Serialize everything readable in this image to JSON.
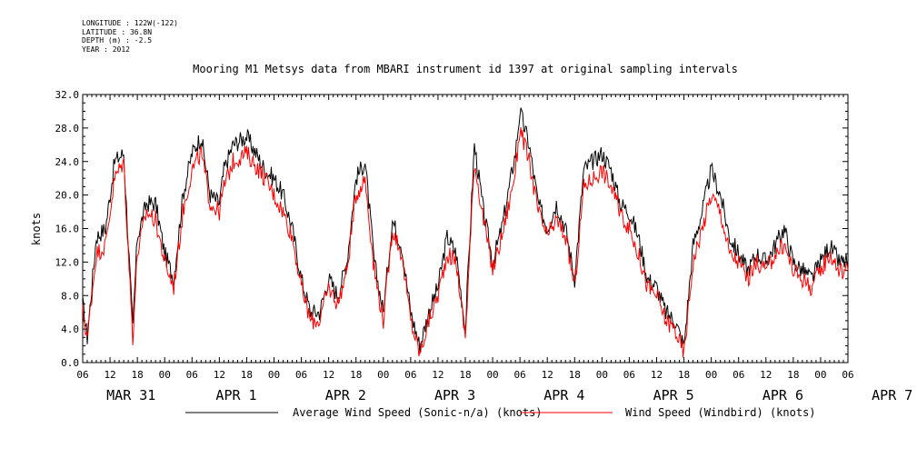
{
  "meta": {
    "longitude": "LONGITUDE : 122W(-122)",
    "latitude": "LATITUDE : 36.8N",
    "depth": "DEPTH (m) : -2.5",
    "year": "YEAR : 2012"
  },
  "chart_data": {
    "type": "line",
    "title": "Mooring M1 Metsys data from MBARI instrument id 1397 at original sampling intervals",
    "xlabel": "",
    "ylabel": "knots",
    "ylim": [
      0,
      32
    ],
    "yticks": [
      "0.0",
      "4.0",
      "8.0",
      "12.0",
      "16.0",
      "20.0",
      "24.0",
      "28.0",
      "32.0"
    ],
    "xlim_hours": [
      0,
      168
    ],
    "x_time_ticks": [
      "06",
      "12",
      "18",
      "00",
      "06",
      "12",
      "18",
      "00",
      "06",
      "12",
      "18",
      "00",
      "06",
      "12",
      "18",
      "00",
      "06",
      "12",
      "18",
      "00",
      "06",
      "12",
      "18",
      "00",
      "06",
      "12",
      "18",
      "00",
      "06"
    ],
    "x_day_labels": [
      "MAR 31",
      "APR 1",
      "APR 2",
      "APR 3",
      "APR 4",
      "APR 5",
      "APR 6",
      "APR 7"
    ],
    "grid": false,
    "legend_position": "bottom",
    "x_units": "hours since 06:00 Mar 31 2012",
    "series": [
      {
        "name": "Average Wind Speed (Sonic-n/a) (knots)",
        "color": "#000000",
        "x": [
          0,
          1,
          3,
          5,
          7,
          9,
          11,
          12,
          14,
          16,
          18,
          20,
          22,
          24,
          26,
          28,
          30,
          31,
          33,
          36,
          40,
          42,
          44,
          46,
          48,
          50,
          52,
          54,
          56,
          58,
          60,
          62,
          64,
          66,
          68,
          70,
          72,
          74,
          76,
          78,
          80,
          82,
          84,
          86,
          88,
          90,
          92,
          94,
          95,
          96,
          98,
          100,
          102,
          104,
          106,
          108,
          110,
          112,
          114,
          116,
          118,
          120,
          122,
          124,
          126,
          128,
          130,
          132,
          134,
          136,
          138,
          140,
          142,
          144,
          146,
          148,
          150,
          152,
          154,
          156,
          158,
          160,
          162,
          164,
          166,
          168
        ],
        "values": [
          7,
          3,
          15,
          16,
          24,
          25,
          4,
          15,
          19,
          19,
          13,
          10,
          20,
          25,
          27,
          20,
          19,
          23,
          26,
          27,
          23,
          22,
          20,
          16,
          10,
          6,
          6,
          10,
          8,
          12,
          22,
          24,
          12,
          6,
          17,
          14,
          6,
          2,
          6,
          9,
          15,
          13,
          4,
          26,
          18,
          12,
          16,
          22,
          25,
          30,
          26,
          19,
          16,
          19,
          16,
          10,
          23,
          24,
          25,
          23,
          19,
          18,
          15,
          10,
          9,
          6,
          5,
          2,
          14,
          18,
          23,
          20,
          15,
          13,
          11,
          13,
          12,
          14,
          16,
          12,
          11,
          10,
          12,
          14,
          12,
          12
        ]
      },
      {
        "name": "Wind Speed (Windbird) (knots)",
        "color": "#ff0000",
        "x": [
          0,
          1,
          3,
          5,
          7,
          9,
          11,
          12,
          14,
          16,
          18,
          20,
          22,
          24,
          26,
          28,
          30,
          31,
          33,
          36,
          40,
          42,
          44,
          46,
          48,
          50,
          52,
          54,
          56,
          58,
          60,
          62,
          64,
          66,
          68,
          70,
          72,
          74,
          76,
          78,
          80,
          82,
          84,
          86,
          88,
          90,
          92,
          94,
          95,
          96,
          98,
          100,
          102,
          104,
          106,
          108,
          110,
          112,
          114,
          116,
          118,
          120,
          122,
          124,
          126,
          128,
          130,
          132,
          134,
          136,
          138,
          140,
          142,
          144,
          146,
          148,
          150,
          152,
          154,
          156,
          158,
          160,
          162,
          164,
          166,
          168
        ],
        "values": [
          6,
          3,
          13,
          14,
          22,
          24,
          3,
          13,
          18,
          17,
          12,
          9,
          18,
          23,
          25,
          19,
          18,
          21,
          24,
          25,
          22,
          20,
          18,
          15,
          9,
          5,
          5,
          9,
          7,
          11,
          20,
          22,
          11,
          5,
          16,
          13,
          5,
          1,
          5,
          8,
          13,
          12,
          3,
          24,
          17,
          11,
          15,
          20,
          23,
          28,
          24,
          18,
          15,
          17,
          15,
          9,
          21,
          22,
          23,
          21,
          18,
          16,
          13,
          9,
          8,
          5,
          4,
          1,
          12,
          16,
          20,
          18,
          13,
          12,
          10,
          12,
          11,
          13,
          14,
          11,
          10,
          9,
          11,
          13,
          11,
          11
        ]
      }
    ]
  }
}
